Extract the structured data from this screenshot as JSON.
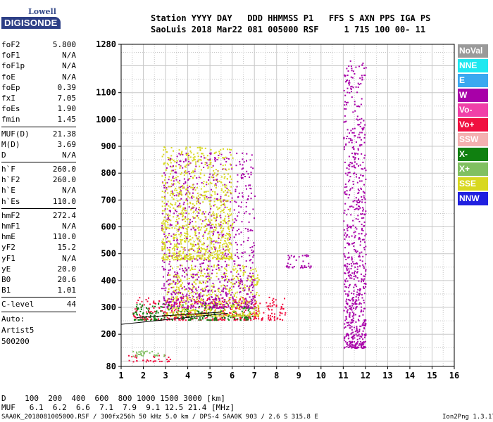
{
  "logo": {
    "line1": "Lowell",
    "line2": "DIGISONDE"
  },
  "header": {
    "line1": "Station YYYY DAY   DDD HHMMSS P1   FFS S AXN PPS IGA PS",
    "line2": "SaoLuis 2018 Mar22 081 005000 RSF     1 715 100 00- 11"
  },
  "params": [
    {
      "name": "foF2",
      "value": "5.800"
    },
    {
      "name": "foF1",
      "value": "N/A"
    },
    {
      "name": "foF1p",
      "value": "N/A"
    },
    {
      "name": "foE",
      "value": "N/A"
    },
    {
      "name": "foEp",
      "value": "0.39"
    },
    {
      "name": "fxI",
      "value": "7.05"
    },
    {
      "name": "foEs",
      "value": "1.90"
    },
    {
      "name": "fmin",
      "value": "1.45"
    },
    {
      "name": "MUF(D)",
      "value": "21.38"
    },
    {
      "name": "M(D)",
      "value": "3.69"
    },
    {
      "name": "D",
      "value": "N/A"
    },
    {
      "name": "h`F",
      "value": "260.0"
    },
    {
      "name": "h`F2",
      "value": "260.0"
    },
    {
      "name": "h`E",
      "value": "N/A"
    },
    {
      "name": "h`Es",
      "value": "110.0"
    },
    {
      "name": "hmF2",
      "value": "272.4"
    },
    {
      "name": "hmF1",
      "value": "N/A"
    },
    {
      "name": "hmE",
      "value": "110.0"
    },
    {
      "name": "yF2",
      "value": "15.2"
    },
    {
      "name": "yF1",
      "value": "N/A"
    },
    {
      "name": "yE",
      "value": "20.0"
    },
    {
      "name": "B0",
      "value": "20.6"
    },
    {
      "name": "B1",
      "value": "1.01"
    },
    {
      "name": "C-level",
      "value": "44"
    }
  ],
  "auto": {
    "line1": "Auto:",
    "line2": "Artist5",
    "line3": "500200"
  },
  "legend": [
    {
      "label": "NoVal",
      "color": "#9a9a9a"
    },
    {
      "label": "NNE",
      "color": "#1ee8f0"
    },
    {
      "label": "E",
      "color": "#3aa8f0"
    },
    {
      "label": "W",
      "color": "#a800a8"
    },
    {
      "label": "Vo-",
      "color": "#f040a8"
    },
    {
      "label": "Vo+",
      "color": "#f01040"
    },
    {
      "label": "SSW",
      "color": "#f4b0b0"
    },
    {
      "label": "X-",
      "color": "#108010"
    },
    {
      "label": "X+",
      "color": "#80c060"
    },
    {
      "label": "SSE",
      "color": "#d8d820"
    },
    {
      "label": "NNW",
      "color": "#2020e0"
    }
  ],
  "muf_table": {
    "d_line": "D    100  200  400  600  800 1000 1500 3000 [km]",
    "muf_line": "MUF   6.1  6.2  6.6  7.1  7.9  9.1 12.5 21.4 [MHz]"
  },
  "footer": {
    "left": "SAA0K_2018081005000.RSF / 300fx256h 50 kHz 5.0 km / DPS-4 SAA0K 903 / 2.6 S 315.8 E",
    "right": "Ion2Png 1.3.17"
  },
  "chart_data": {
    "type": "scatter",
    "x_ticks": [
      "1",
      "2",
      "3",
      "4",
      "5",
      "6",
      "7",
      "8",
      "9",
      "10",
      "11",
      "12",
      "13",
      "14",
      "15",
      "16"
    ],
    "y_ticks": [
      "80",
      "200",
      "300",
      "400",
      "500",
      "600",
      "700",
      "800",
      "900",
      "1000",
      "1100",
      "1280"
    ],
    "xlim": [
      1,
      16
    ],
    "ylim": [
      80,
      1280
    ],
    "grid": true,
    "echo_regions": [
      {
        "name": "F-trace",
        "color": "#f01040",
        "fmin": 1.5,
        "fmax": 8.4,
        "hmin": 255,
        "hmax": 340
      },
      {
        "name": "F-trace-green",
        "color": "#108010",
        "fmin": 1.5,
        "fmax": 7.0,
        "hmin": 255,
        "hmax": 320
      },
      {
        "name": "F-trace-yellow",
        "color": "#d8d820",
        "fmin": 3.0,
        "fmax": 7.2,
        "hmin": 270,
        "hmax": 460
      },
      {
        "name": "spread-F-purple",
        "color": "#a800a8",
        "fmin": 2.8,
        "fmax": 7.0,
        "hmin": 300,
        "hmax": 880
      },
      {
        "name": "spread-F-yellow",
        "color": "#d8d820",
        "fmin": 2.8,
        "fmax": 6.0,
        "hmin": 480,
        "hmax": 900
      },
      {
        "name": "oblique-W",
        "color": "#a800a8",
        "fmin": 8.4,
        "fmax": 9.6,
        "hmin": 450,
        "hmax": 500
      },
      {
        "name": "Es-layer",
        "color": "#f01040",
        "fmin": 1.3,
        "fmax": 3.2,
        "hmin": 100,
        "hmax": 125
      },
      {
        "name": "Es-green",
        "color": "#80c060",
        "fmin": 1.5,
        "fmax": 3.0,
        "hmin": 120,
        "hmax": 140
      },
      {
        "name": "scatter-11-12MHz",
        "color": "#a800a8",
        "fmin": 11.0,
        "fmax": 12.0,
        "hmin": 150,
        "hmax": 1220
      }
    ],
    "trace_lines": [
      {
        "points": [
          [
            1.0,
            237
          ],
          [
            5.8,
            278
          ]
        ]
      },
      {
        "points": [
          [
            1.7,
            262
          ],
          [
            5.5,
            282
          ]
        ]
      }
    ]
  }
}
